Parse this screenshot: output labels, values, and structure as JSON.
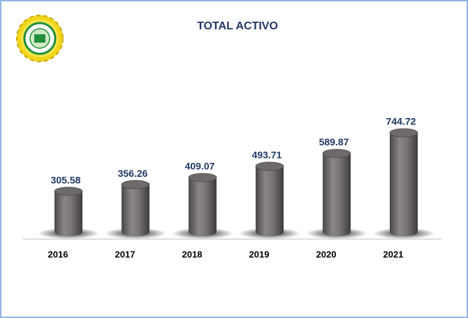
{
  "chart_data": {
    "type": "bar",
    "title": "TOTAL ACTIVO",
    "categories": [
      "2016",
      "2017",
      "2018",
      "2019",
      "2020",
      "2021"
    ],
    "values": [
      305.58,
      356.26,
      409.07,
      493.71,
      589.87,
      744.72
    ],
    "color": "#6e6a6a"
  }
}
